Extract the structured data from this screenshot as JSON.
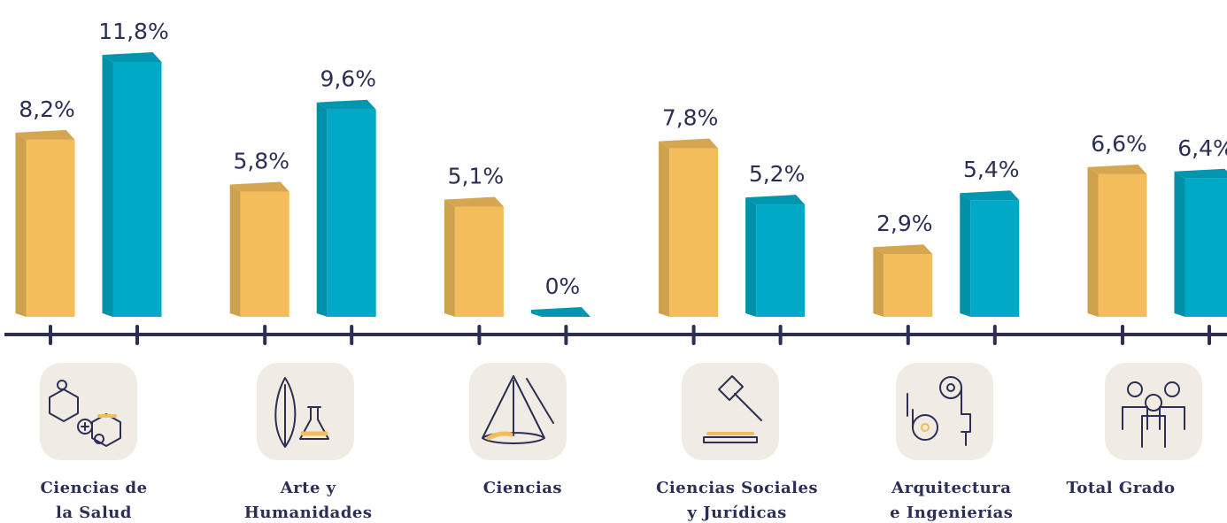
{
  "chart_data": {
    "type": "bar3d",
    "categories": [
      "Ciencias de\nla Salud",
      "Arte y\nHumanidades",
      "Ciencias",
      "Ciencias Sociales\ny Jurídicas",
      "Arquitectura\ne Ingenierías",
      "Total Grado"
    ],
    "series": [
      {
        "color": "#f2bd5a",
        "values": [
          8.2,
          5.8,
          5.1,
          7.8,
          2.9,
          6.6
        ],
        "value_labels": [
          "8,2%",
          "5,8%",
          "5,1%",
          "7,8%",
          "2,9%",
          "6,6%"
        ]
      },
      {
        "color": "#00aac7",
        "values": [
          11.8,
          9.6,
          0,
          5.2,
          5.4,
          6.4
        ],
        "value_labels": [
          "11,8%",
          "9,6%",
          "0%",
          "5,2%",
          "5,4%",
          "6,4%"
        ]
      }
    ]
  }
}
